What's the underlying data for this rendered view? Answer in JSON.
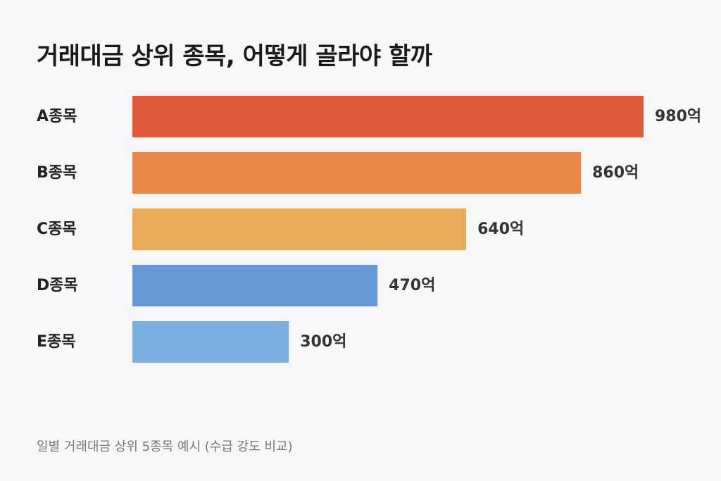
{
  "page": {
    "title": "거래대금 상위 종목, 어떻게 골라야 할까",
    "footnote": "일별 거래대금 상위 5종목 예시 (수급 강도 비교)"
  },
  "chart_data": {
    "type": "bar",
    "orientation": "horizontal",
    "title": "거래대금 상위 종목, 어떻게 골라야 할까",
    "categories": [
      "A종목",
      "B종목",
      "C종목",
      "D종목",
      "E종목"
    ],
    "values": [
      980,
      860,
      640,
      470,
      300
    ],
    "value_labels": [
      "980억",
      "860억",
      "640억",
      "470억",
      "300억"
    ],
    "unit": "억",
    "colors": [
      "#e05a3a",
      "#e8874a",
      "#ebab5c",
      "#6598d4",
      "#79aedf"
    ],
    "xlim": [
      0,
      980
    ],
    "grid": false,
    "legend": "none"
  }
}
